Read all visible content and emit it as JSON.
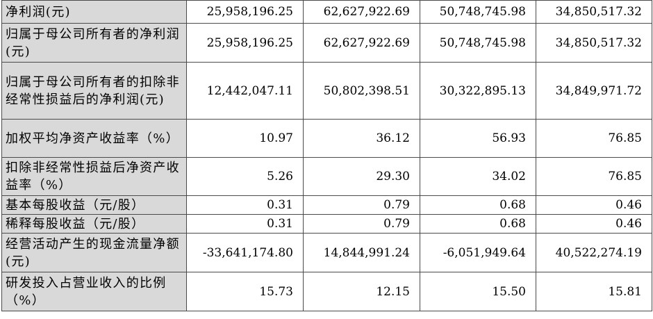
{
  "rows": [
    {
      "label": "净利润(元)",
      "values": [
        "25,958,196.25",
        "62,627,922.69",
        "50,748,745.98",
        "34,850,517.32"
      ]
    },
    {
      "label": "归属于母公司所有者的净利润(元)",
      "values": [
        "25,958,196.25",
        "62,627,922.69",
        "50,748,745.98",
        "34,850,517.32"
      ]
    },
    {
      "label": "归属于母公司所有者的扣除非经常性损益后的净利润(元)",
      "values": [
        "12,442,047.11",
        "50,802,398.51",
        "30,322,895.13",
        "34,849,971.72"
      ]
    },
    {
      "label": "加权平均净资产收益率（%）",
      "values": [
        "10.97",
        "36.12",
        "56.93",
        "76.85"
      ]
    },
    {
      "label": "扣除非经常性损益后净资产收益率（%）",
      "values": [
        "5.26",
        "29.30",
        "34.02",
        "76.85"
      ]
    },
    {
      "label": "基本每股收益（元/股）",
      "values": [
        "0.31",
        "0.79",
        "0.68",
        "0.46"
      ]
    },
    {
      "label": "稀释每股收益（元/股）",
      "values": [
        "0.31",
        "0.79",
        "0.68",
        "0.46"
      ]
    },
    {
      "label": "经营活动产生的现金流量净额(元)",
      "values": [
        "-33,641,174.80",
        "14,844,991.24",
        "-6,051,949.64",
        "40,522,274.19"
      ]
    },
    {
      "label": "研发投入占营业收入的比例（%）",
      "values": [
        "15.73",
        "12.15",
        "15.50",
        "15.81"
      ]
    }
  ]
}
